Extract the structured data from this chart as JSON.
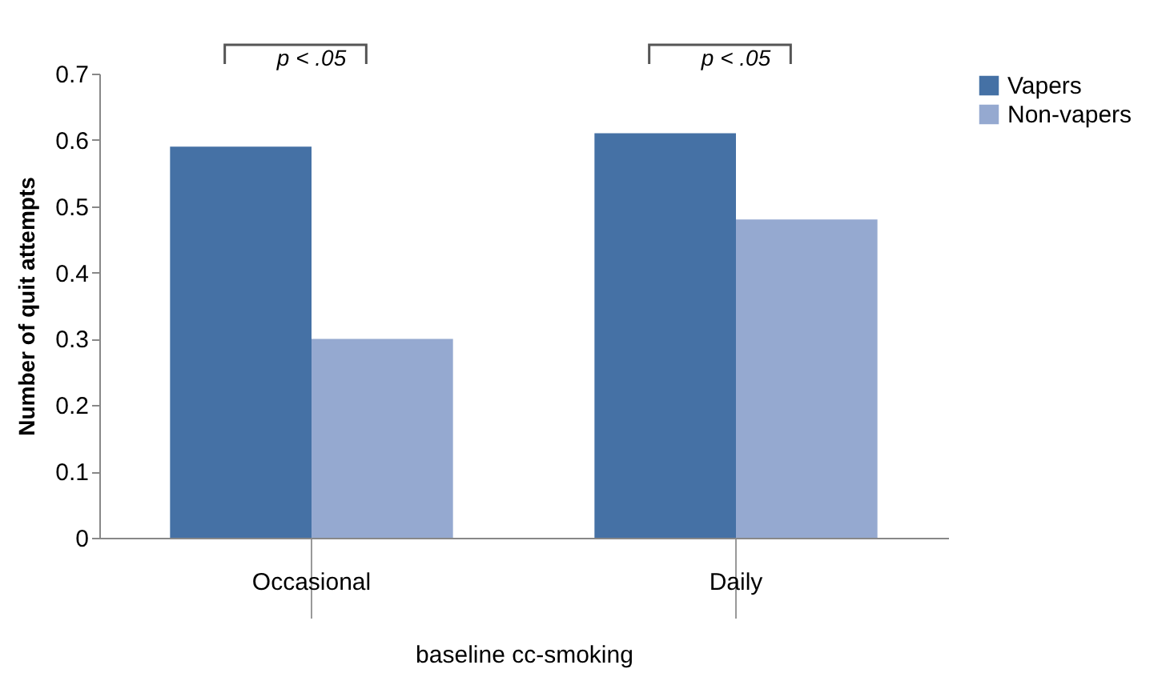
{
  "chart_data": {
    "type": "bar",
    "xlabel": "baseline cc-smoking",
    "ylabel": "Number of quit attempts",
    "categories": [
      "Occasional",
      "Daily"
    ],
    "series": [
      {
        "name": "Vapers",
        "color": "#4571a5",
        "values": [
          0.59,
          0.61
        ]
      },
      {
        "name": "Non-vapers",
        "color": "#95a9d0",
        "values": [
          0.3,
          0.48
        ]
      }
    ],
    "ylim": [
      0,
      0.7
    ],
    "yticks": [
      0,
      0.1,
      0.2,
      0.3,
      0.4,
      0.5,
      0.6,
      0.7
    ],
    "grid": false,
    "legend": "right",
    "annotations": [
      "p < .05",
      "p < .05"
    ]
  }
}
